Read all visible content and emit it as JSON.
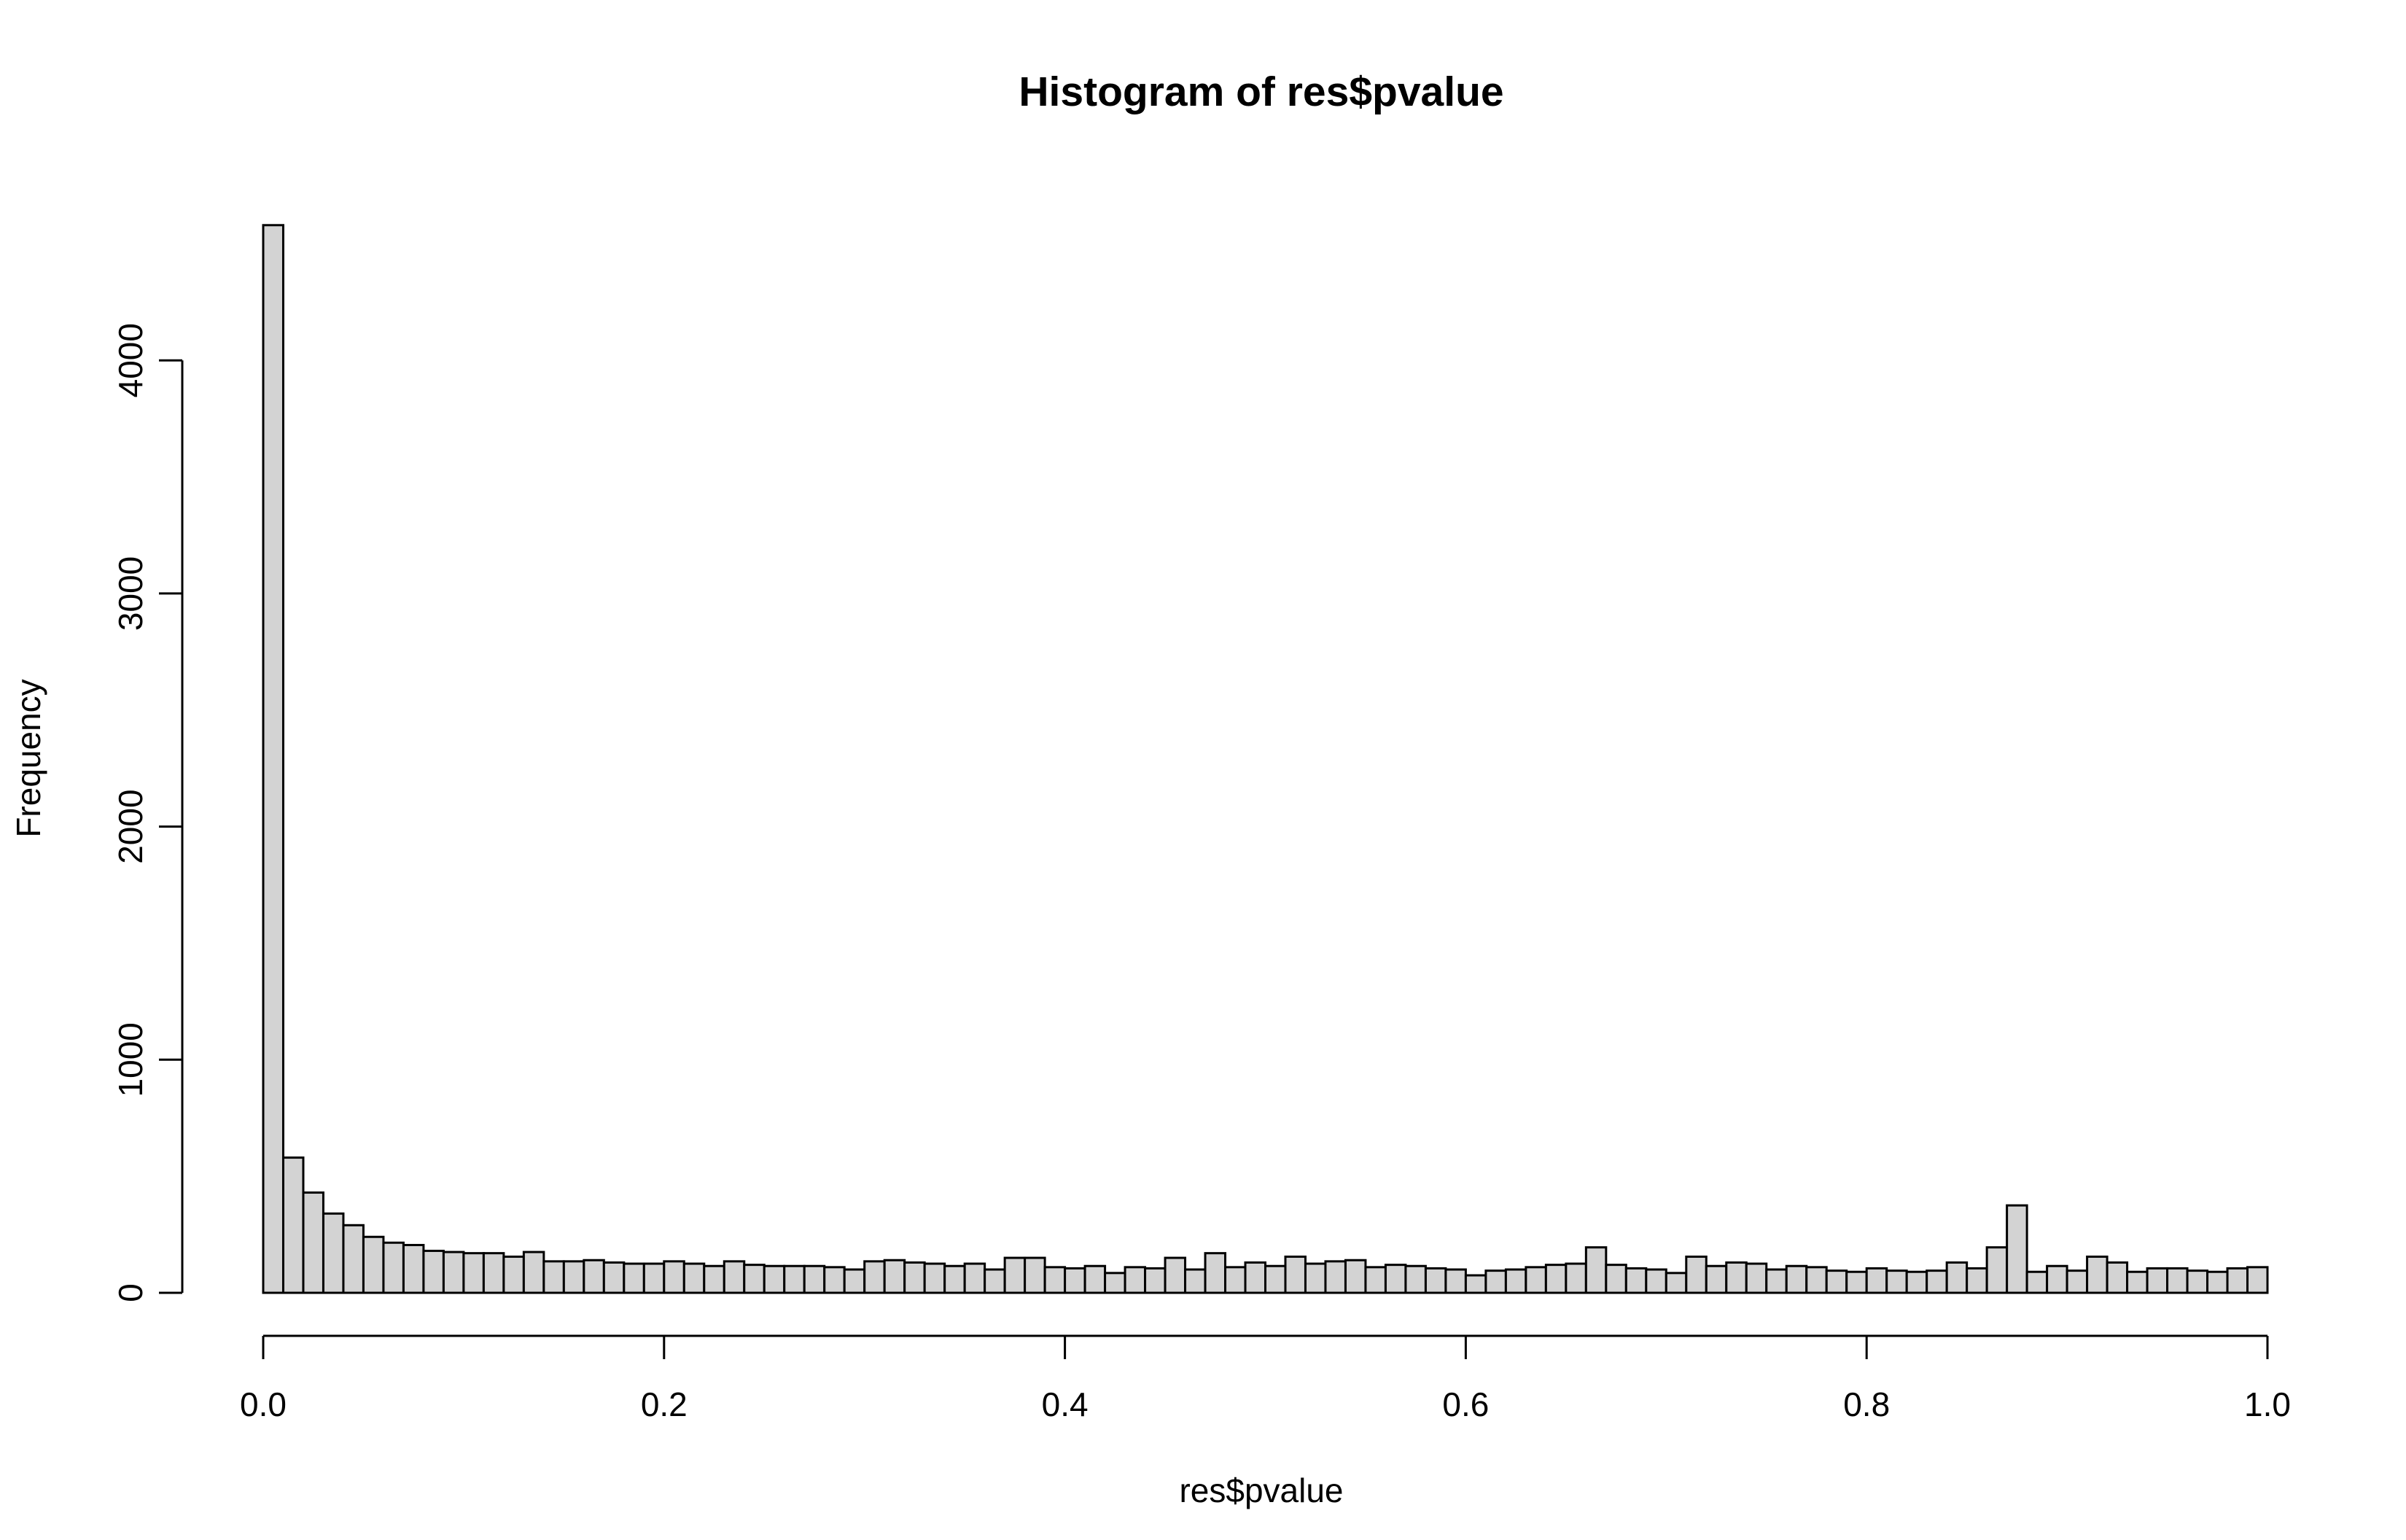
{
  "chart_data": {
    "type": "bar",
    "title": "Histogram of res$pvalue",
    "xlabel": "res$pvalue",
    "ylabel": "Frequency",
    "bin_width": 0.01,
    "xlim": [
      0,
      1
    ],
    "ylim": [
      0,
      4600
    ],
    "x_ticks": [
      "0.0",
      "0.2",
      "0.4",
      "0.6",
      "0.8",
      "1.0"
    ],
    "x_tick_values": [
      0,
      0.2,
      0.4,
      0.6,
      0.8,
      1.0
    ],
    "y_ticks": [
      "0",
      "1000",
      "2000",
      "3000",
      "4000"
    ],
    "y_tick_values": [
      0,
      1000,
      2000,
      3000,
      4000
    ],
    "grid": false,
    "bar_color": "#d3d3d3",
    "edge_color": "#000000",
    "values": [
      4580,
      580,
      430,
      340,
      290,
      240,
      215,
      205,
      180,
      175,
      170,
      170,
      155,
      175,
      135,
      135,
      140,
      130,
      125,
      125,
      135,
      125,
      115,
      135,
      120,
      115,
      115,
      115,
      110,
      100,
      135,
      140,
      130,
      125,
      115,
      125,
      100,
      150,
      150,
      110,
      105,
      115,
      85,
      110,
      105,
      150,
      100,
      170,
      110,
      130,
      115,
      155,
      125,
      135,
      140,
      110,
      120,
      115,
      105,
      100,
      75,
      95,
      100,
      110,
      120,
      125,
      195,
      120,
      105,
      100,
      85,
      155,
      115,
      130,
      125,
      100,
      115,
      110,
      95,
      90,
      105,
      95,
      90,
      95,
      130,
      105,
      195,
      375,
      90,
      115,
      95,
      155,
      130,
      90,
      105,
      105,
      95,
      90,
      105,
      110
    ]
  }
}
